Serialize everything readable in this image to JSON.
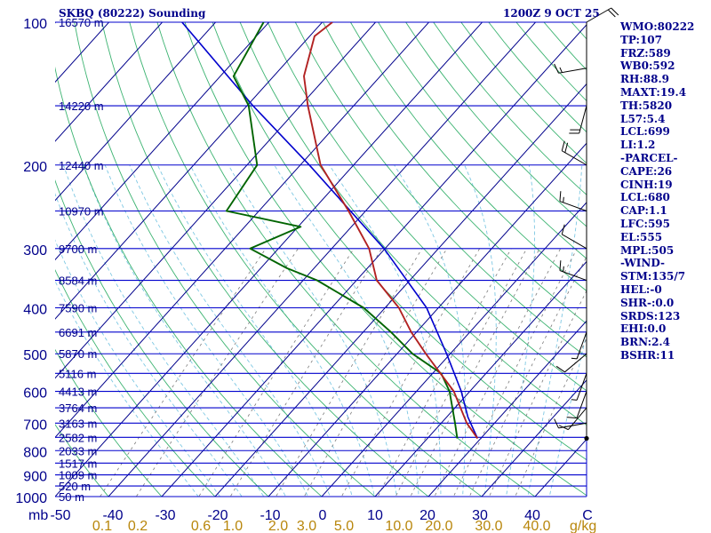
{
  "header": {
    "station": "SKBQ (80222) Sounding",
    "datetime": "1200Z  9 OCT 25"
  },
  "indices": [
    "WMO:80222",
    "TP:107",
    "FRZ:589",
    "WB0:592",
    "RH:88.9",
    "MAXT:19.4",
    "TH:5820",
    "L57:5.4",
    "LCL:699",
    "LI:1.2",
    "-PARCEL-",
    "CAPE:26",
    "CINH:19",
    "LCL:680",
    "CAP:1.1",
    "LFC:595",
    "EL:555",
    "MPL:505",
    "-WIND-",
    "STM:135/7",
    "HEL:-0",
    "SHR-:0.0",
    "SRDS:123",
    "EHI:0.0",
    "BRN:2.4",
    "BSHR:11"
  ],
  "colors": {
    "isobar": "#0000cd",
    "isotherm": "#00008b",
    "dry_adiabat": "#3cb371",
    "moist_adiabat": "#7ec8e3",
    "mixing_ratio": "#7a7a7a",
    "temperature": "#b22222",
    "dewpoint": "#006400",
    "parcel": "#0000cd",
    "label": "#00008b",
    "mixing_label": "#b8860b"
  },
  "chart_data": {
    "type": "skew-t",
    "title": "SKBQ (80222) Sounding",
    "pressure_unit": "mb",
    "temperature_unit": "C",
    "mixing_ratio_unit": "g/kg",
    "pressure_range": [
      100,
      1000
    ],
    "temperature_range": [
      -50,
      50
    ],
    "pressure_ticks": [
      100,
      200,
      300,
      400,
      500,
      600,
      700,
      800,
      900,
      1000
    ],
    "temperature_ticks": [
      -50,
      -40,
      -30,
      -20,
      -10,
      0,
      10,
      20,
      30,
      40
    ],
    "mixing_ratio_ticks": [
      "0.1",
      "0.2",
      "0.6",
      "1.0",
      "2.0",
      "3.0",
      "5.0",
      "10.0",
      "20.0",
      "30.0",
      "40.0"
    ],
    "height_levels": [
      {
        "p": 100,
        "label": "16570 m"
      },
      {
        "p": 150,
        "label": "14220 m"
      },
      {
        "p": 200,
        "label": "12440 m"
      },
      {
        "p": 250,
        "label": "10970 m"
      },
      {
        "p": 300,
        "label": "9700 m"
      },
      {
        "p": 350,
        "label": "8584 m"
      },
      {
        "p": 400,
        "label": "7590 m"
      },
      {
        "p": 450,
        "label": "6691 m"
      },
      {
        "p": 500,
        "label": "5870 m"
      },
      {
        "p": 550,
        "label": "5116 m"
      },
      {
        "p": 600,
        "label": "4413 m"
      },
      {
        "p": 650,
        "label": "3764 m"
      },
      {
        "p": 700,
        "label": "3163 m"
      },
      {
        "p": 750,
        "label": "2582 m"
      },
      {
        "p": 800,
        "label": "2033 m"
      },
      {
        "p": 850,
        "label": "1517 m"
      },
      {
        "p": 900,
        "label": "1009 m"
      },
      {
        "p": 950,
        "label": "520 m"
      },
      {
        "p": 1000,
        "label": "50 m"
      }
    ],
    "temperature_profile": [
      {
        "p": 754,
        "t": 19.4
      },
      {
        "p": 700,
        "t": 14.8
      },
      {
        "p": 600,
        "t": 7.0
      },
      {
        "p": 500,
        "t": -4.6
      },
      {
        "p": 450,
        "t": -11.0
      },
      {
        "p": 400,
        "t": -17.4
      },
      {
        "p": 350,
        "t": -26.2
      },
      {
        "p": 300,
        "t": -33.0
      },
      {
        "p": 250,
        "t": -43.2
      },
      {
        "p": 200,
        "t": -56.2
      },
      {
        "p": 150,
        "t": -68.6
      },
      {
        "p": 130,
        "t": -74.3
      },
      {
        "p": 107,
        "t": -79.1
      },
      {
        "p": 100,
        "t": -78.1
      }
    ],
    "dewpoint_profile": [
      {
        "p": 754,
        "td": 15.6
      },
      {
        "p": 700,
        "td": 12.6
      },
      {
        "p": 600,
        "td": 6.2
      },
      {
        "p": 550,
        "td": 1.6
      },
      {
        "p": 500,
        "td": -7.1
      },
      {
        "p": 450,
        "td": -14.8
      },
      {
        "p": 400,
        "td": -24.0
      },
      {
        "p": 350,
        "td": -37.4
      },
      {
        "p": 330,
        "td": -45.1
      },
      {
        "p": 300,
        "td": -55.3
      },
      {
        "p": 270,
        "td": -49.5
      },
      {
        "p": 250,
        "td": -66.1
      },
      {
        "p": 200,
        "td": -68.1
      },
      {
        "p": 150,
        "td": -79.7
      },
      {
        "p": 130,
        "td": -87.5
      },
      {
        "p": 100,
        "td": -91.0
      }
    ],
    "parcel_profile": [
      {
        "p": 754,
        "t": 19.4
      },
      {
        "p": 680,
        "t": 14.0
      },
      {
        "p": 600,
        "t": 8.4
      },
      {
        "p": 500,
        "t": -0.7
      },
      {
        "p": 400,
        "t": -12.2
      },
      {
        "p": 300,
        "t": -30.2
      },
      {
        "p": 200,
        "t": -58.3
      },
      {
        "p": 150,
        "t": -78.9
      },
      {
        "p": 100,
        "t": -106.3
      }
    ],
    "wind_barbs": [
      {
        "p": 754,
        "dir": 90,
        "kt": 0
      },
      {
        "p": 700,
        "dir": 260,
        "kt": 10
      },
      {
        "p": 650,
        "dir": 220,
        "kt": 10
      },
      {
        "p": 600,
        "dir": 200,
        "kt": 10
      },
      {
        "p": 550,
        "dir": 200,
        "kt": 5
      },
      {
        "p": 500,
        "dir": 230,
        "kt": 10
      },
      {
        "p": 450,
        "dir": 200,
        "kt": 5
      },
      {
        "p": 350,
        "dir": 290,
        "kt": 15
      },
      {
        "p": 300,
        "dir": 300,
        "kt": 10
      },
      {
        "p": 250,
        "dir": 290,
        "kt": 15
      },
      {
        "p": 200,
        "dir": 300,
        "kt": 20
      },
      {
        "p": 150,
        "dir": 195,
        "kt": 20
      },
      {
        "p": 125,
        "dir": 260,
        "kt": 15
      },
      {
        "p": 100,
        "dir": 60,
        "kt": 20
      }
    ]
  }
}
